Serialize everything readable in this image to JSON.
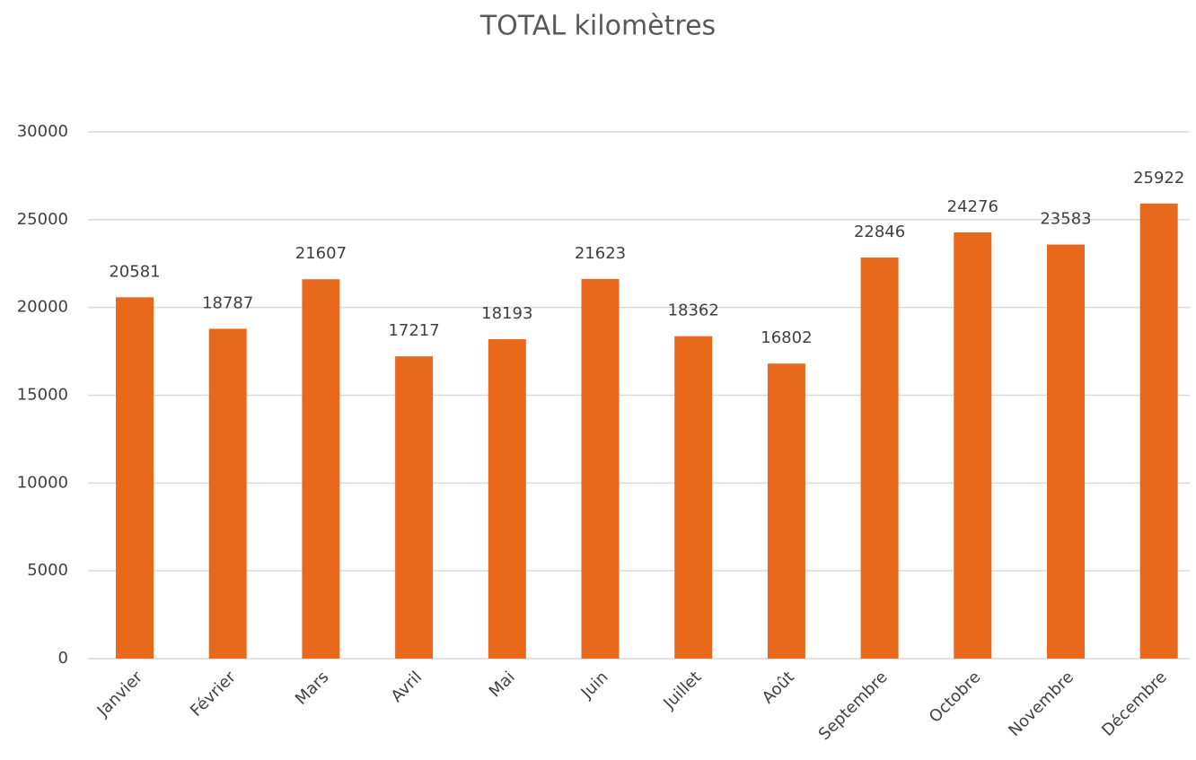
{
  "chart_data": {
    "type": "bar",
    "title": "TOTAL kilomètres",
    "categories": [
      "Janvier",
      "Février",
      "Mars",
      "Avril",
      "Mai",
      "Juin",
      "Juillet",
      "Août",
      "Septembre",
      "Octobre",
      "Novembre",
      "Décembre"
    ],
    "values": [
      20581,
      18787,
      21607,
      17217,
      18193,
      21623,
      18362,
      16802,
      22846,
      24276,
      23583,
      25922
    ],
    "color": "#e8691b",
    "ylim": [
      0,
      30000
    ],
    "yticks": [
      0,
      5000,
      10000,
      15000,
      20000,
      25000,
      30000
    ],
    "grid": true
  }
}
